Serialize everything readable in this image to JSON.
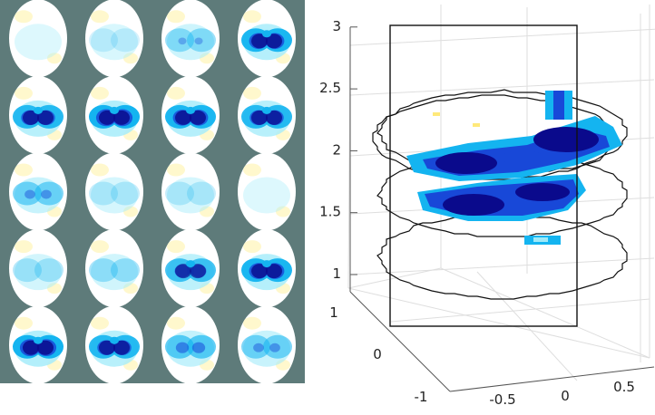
{
  "chart_data": [
    {
      "type": "heatmap",
      "layout": "grid of elliptical slice images",
      "rows": 5,
      "cols": 4,
      "background": "#5e7b7a",
      "colormap": [
        "#0a0a8c",
        "#1848d8",
        "#14b4f0",
        "#a6ecfa",
        "#ffffff",
        "#fff7c8"
      ],
      "intensity_grid": [
        [
          0.05,
          0.15,
          0.35,
          0.8
        ],
        [
          0.75,
          0.85,
          0.8,
          0.75
        ],
        [
          0.45,
          0.2,
          0.2,
          0.05
        ],
        [
          0.25,
          0.3,
          0.65,
          0.8
        ],
        [
          0.85,
          0.75,
          0.55,
          0.45
        ]
      ]
    },
    {
      "type": "3d-slices",
      "zlim": [
        0.8,
        3.0
      ],
      "z_ticks": [
        "1",
        "1.5",
        "2",
        "2.5",
        "3"
      ],
      "x_ticks": [
        "-0.5",
        "0",
        "0.5"
      ],
      "y_ticks": [
        "-1",
        "0",
        "1"
      ],
      "grid": true,
      "slice_levels": [
        1.0,
        1.5,
        2.0
      ],
      "colors": {
        "dark": "#0a0a8c",
        "mid": "#1848d8",
        "light": "#14b4f0",
        "pale": "#9ee9f8",
        "yellow": "#ffe97a",
        "outline": "#111111",
        "grid": "#dedede",
        "axis": "#555555"
      }
    }
  ]
}
